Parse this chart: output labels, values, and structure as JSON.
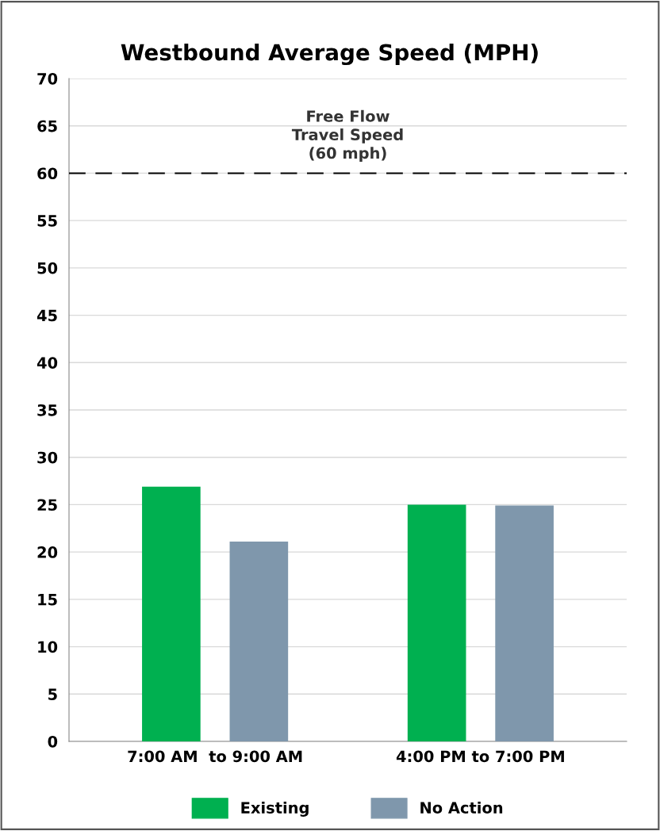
{
  "chart_data": {
    "type": "bar",
    "title": "Westbound Average Speed (MPH)",
    "categories": [
      "7:00 AM  to 9:00 AM",
      "4:00 PM to 7:00 PM"
    ],
    "series": [
      {
        "name": "Existing",
        "color": "#00b050",
        "values": [
          26.9,
          25.0
        ]
      },
      {
        "name": "No Action",
        "color": "#7f97ac",
        "values": [
          21.1,
          24.9
        ]
      }
    ],
    "ylim": [
      0,
      70
    ],
    "yticks": [
      0,
      5,
      10,
      15,
      20,
      25,
      30,
      35,
      40,
      45,
      50,
      55,
      60,
      65,
      70
    ],
    "grid": "y",
    "legend": "bottom",
    "ref_lines": [
      {
        "axis": "y",
        "value": 60,
        "label": "Free Flow\nTravel Speed\n(60 mph)",
        "color": "#000000",
        "line_style": "dashed"
      }
    ]
  }
}
